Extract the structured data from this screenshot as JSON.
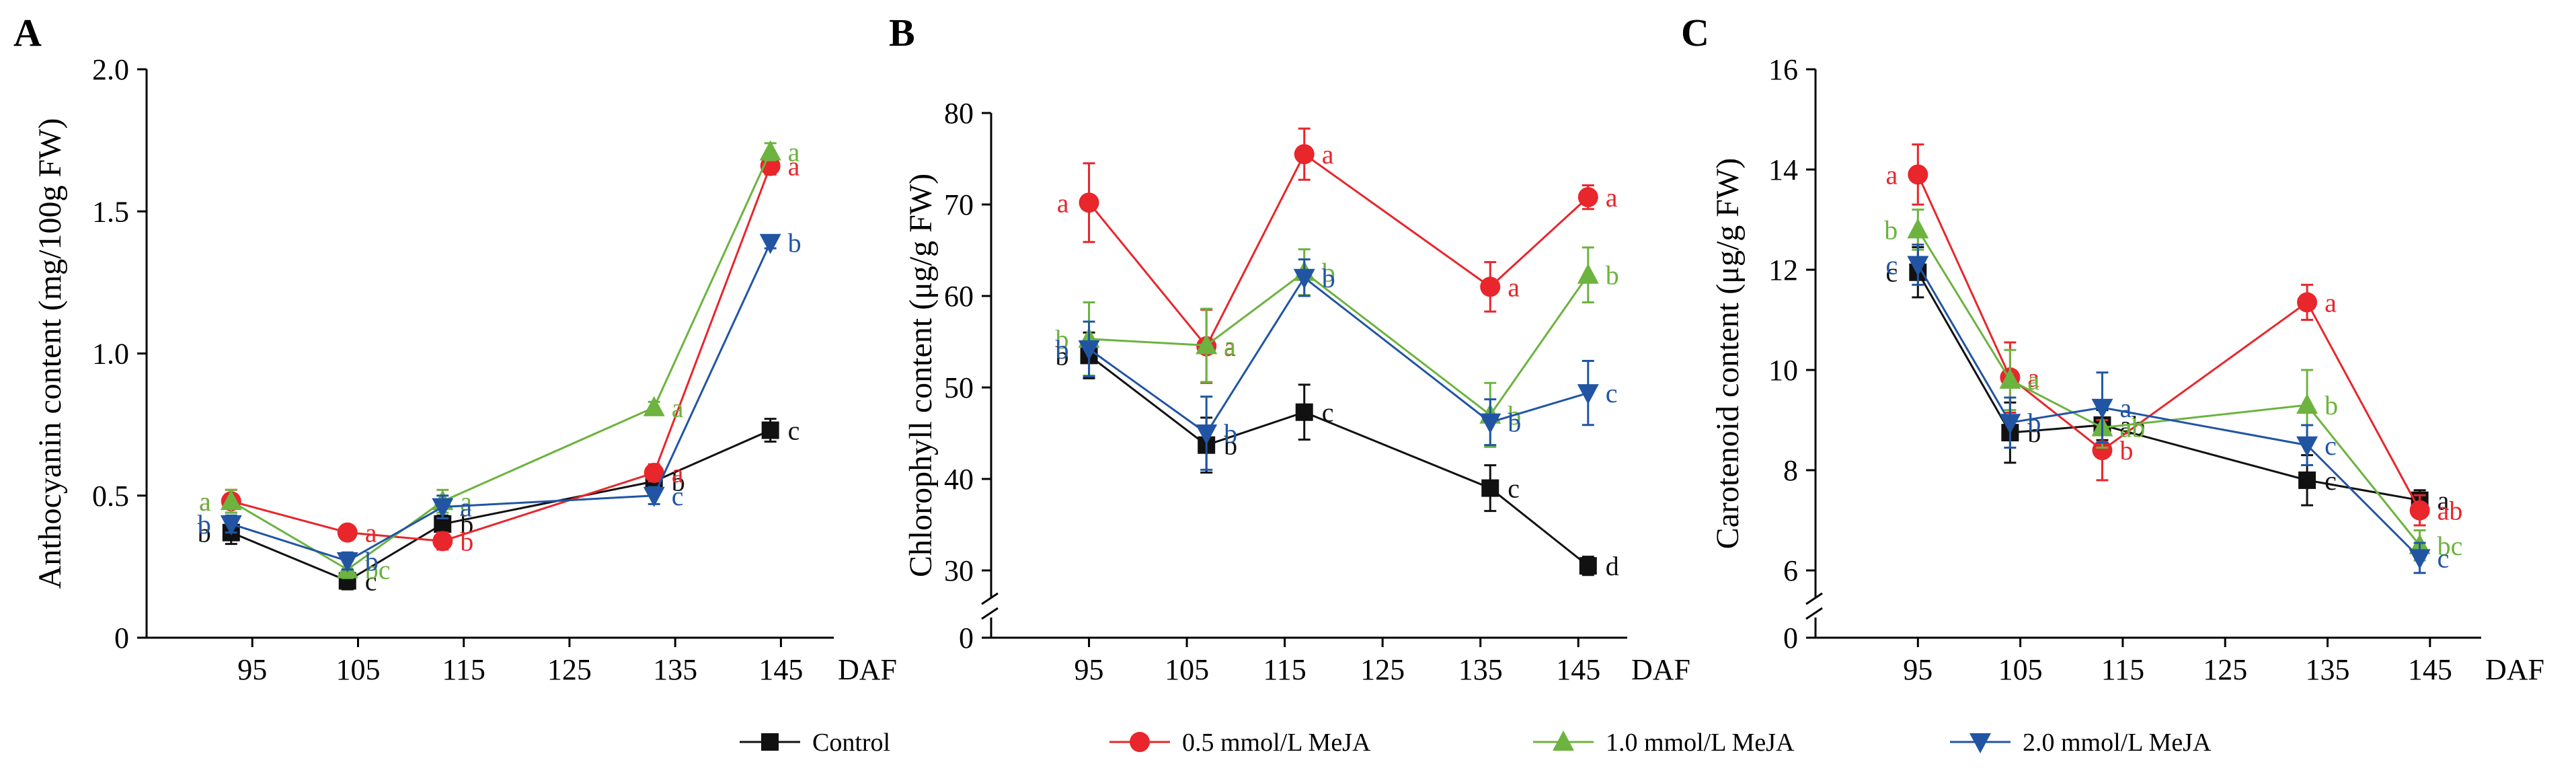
{
  "legend": [
    {
      "name": "Control",
      "color": "#111111",
      "marker": "square"
    },
    {
      "name": "0.5 mmol/L MeJA",
      "color": "#e8262b",
      "marker": "circle"
    },
    {
      "name": "1.0 mmol/L MeJA",
      "color": "#6cb33f",
      "marker": "triangle-up"
    },
    {
      "name": "2.0 mmol/L MeJA",
      "color": "#2155a4",
      "marker": "triangle-down"
    }
  ],
  "chart_data": [
    {
      "type": "line",
      "panel": "A",
      "ylabel": "Anthocyanin content (mg/100g FW)",
      "xlabel": "DAF",
      "xlim": [
        85,
        150
      ],
      "xticks": [
        95,
        105,
        115,
        125,
        135,
        145
      ],
      "ylim": [
        0,
        2.0
      ],
      "yticks": [
        0,
        0.5,
        1.0,
        1.5,
        2.0
      ],
      "ytick_labels": [
        "0",
        "0.5",
        "1.0",
        "1.5",
        "2.0"
      ],
      "axis_break": false,
      "series": [
        {
          "name": "Control",
          "x": [
            93,
            104,
            113,
            133,
            144
          ],
          "y": [
            0.37,
            0.2,
            0.4,
            0.55,
            0.73
          ],
          "err": [
            0.04,
            0.03,
            0.03,
            0.03,
            0.04
          ],
          "labels": [
            "b",
            "c",
            "b",
            "b",
            "c"
          ]
        },
        {
          "name": "0.5 mmol/L MeJA",
          "x": [
            93,
            104,
            113,
            133,
            144
          ],
          "y": [
            0.48,
            0.37,
            0.34,
            0.58,
            1.66
          ],
          "err": [
            0.04,
            0.02,
            0.03,
            0.03,
            0.03
          ],
          "labels": [
            "a",
            "a",
            "b",
            "a",
            "a"
          ]
        },
        {
          "name": "1.0 mmol/L MeJA",
          "x": [
            93,
            104,
            113,
            133,
            144
          ],
          "y": [
            0.48,
            0.24,
            0.48,
            0.81,
            1.71
          ],
          "err": [
            0.04,
            0.03,
            0.04,
            0.02,
            0.03
          ],
          "labels": [
            "a",
            "bc",
            "a",
            "a",
            "a"
          ]
        },
        {
          "name": "2.0 mmol/L MeJA",
          "x": [
            93,
            104,
            113,
            133,
            144
          ],
          "y": [
            0.4,
            0.27,
            0.46,
            0.5,
            1.39
          ],
          "err": [
            0.03,
            0.03,
            0.04,
            0.03,
            0.02
          ],
          "labels": [
            "b",
            "b",
            "a",
            "c",
            "b"
          ]
        }
      ]
    },
    {
      "type": "line",
      "panel": "B",
      "ylabel": "Chlorophyll content (μg/g FW)",
      "xlabel": "DAF",
      "xlim": [
        85,
        150
      ],
      "xticks": [
        95,
        105,
        115,
        125,
        135,
        145
      ],
      "ylim": [
        0,
        80
      ],
      "yticks": [
        0,
        30,
        40,
        50,
        60,
        70,
        80
      ],
      "ytick_labels": [
        "0",
        "30",
        "40",
        "50",
        "60",
        "70",
        "80"
      ],
      "axis_break": true,
      "series": [
        {
          "name": "Control",
          "x": [
            95,
            107,
            117,
            136,
            146
          ],
          "y": [
            53.5,
            43.7,
            47.3,
            39.0,
            30.5
          ],
          "err": [
            2.5,
            3.0,
            3.0,
            2.5,
            1.0
          ],
          "labels": [
            "b",
            "b",
            "c",
            "c",
            "d"
          ]
        },
        {
          "name": "0.5 mmol/L MeJA",
          "x": [
            95,
            107,
            117,
            136,
            146
          ],
          "y": [
            70.2,
            54.5,
            75.5,
            61.0,
            70.8
          ],
          "err": [
            4.3,
            4.0,
            2.8,
            2.7,
            1.3
          ],
          "labels": [
            "a",
            "a",
            "a",
            "a",
            "a"
          ]
        },
        {
          "name": "1.0 mmol/L MeJA",
          "x": [
            95,
            107,
            117,
            136,
            146
          ],
          "y": [
            55.3,
            54.6,
            62.6,
            47.0,
            62.3
          ],
          "err": [
            4.0,
            4.0,
            2.5,
            3.5,
            3.0
          ],
          "labels": [
            "b",
            "a",
            "b",
            "b",
            "b"
          ]
        },
        {
          "name": "2.0 mmol/L MeJA",
          "x": [
            95,
            107,
            117,
            136,
            146
          ],
          "y": [
            54.2,
            45.0,
            62.0,
            46.2,
            49.4
          ],
          "err": [
            3.0,
            4.0,
            2.0,
            2.5,
            3.5
          ],
          "labels": [
            "b",
            "b",
            "b",
            "b",
            "c"
          ]
        }
      ]
    },
    {
      "type": "line",
      "panel": "C",
      "ylabel": "Carotenoid content (μg/g FW)",
      "xlabel": "DAF",
      "xlim": [
        85,
        150
      ],
      "xticks": [
        95,
        105,
        115,
        125,
        135,
        145
      ],
      "ylim": [
        0,
        16
      ],
      "yticks": [
        0,
        6,
        8,
        10,
        12,
        14,
        16
      ],
      "ytick_labels": [
        "0",
        "6",
        "8",
        "10",
        "12",
        "14",
        "16"
      ],
      "axis_break": true,
      "series": [
        {
          "name": "Control",
          "x": [
            95,
            104,
            113,
            133,
            144
          ],
          "y": [
            11.95,
            8.75,
            8.9,
            7.8,
            7.4
          ],
          "err": [
            0.5,
            0.6,
            0.3,
            0.5,
            0.2
          ],
          "labels": [
            "c",
            "b",
            "ab",
            "c",
            "a"
          ]
        },
        {
          "name": "0.5 mmol/L MeJA",
          "x": [
            95,
            104,
            113,
            133,
            144
          ],
          "y": [
            13.9,
            9.85,
            8.4,
            11.35,
            7.2
          ],
          "err": [
            0.6,
            0.7,
            0.6,
            0.35,
            0.3
          ],
          "labels": [
            "a",
            "a",
            "b",
            "a",
            "ab"
          ]
        },
        {
          "name": "1.0 mmol/L MeJA",
          "x": [
            95,
            104,
            113,
            133,
            144
          ],
          "y": [
            12.8,
            9.8,
            8.85,
            9.3,
            6.5
          ],
          "err": [
            0.4,
            0.6,
            0.4,
            0.7,
            0.3
          ],
          "labels": [
            "b",
            "a",
            "ab",
            "b",
            "bc"
          ]
        },
        {
          "name": "2.0 mmol/L MeJA",
          "x": [
            95,
            104,
            113,
            133,
            144
          ],
          "y": [
            12.1,
            8.95,
            9.25,
            8.5,
            6.25
          ],
          "err": [
            0.4,
            0.5,
            0.7,
            0.4,
            0.3
          ],
          "labels": [
            "c",
            "b",
            "a",
            "c",
            "c"
          ]
        }
      ]
    }
  ]
}
